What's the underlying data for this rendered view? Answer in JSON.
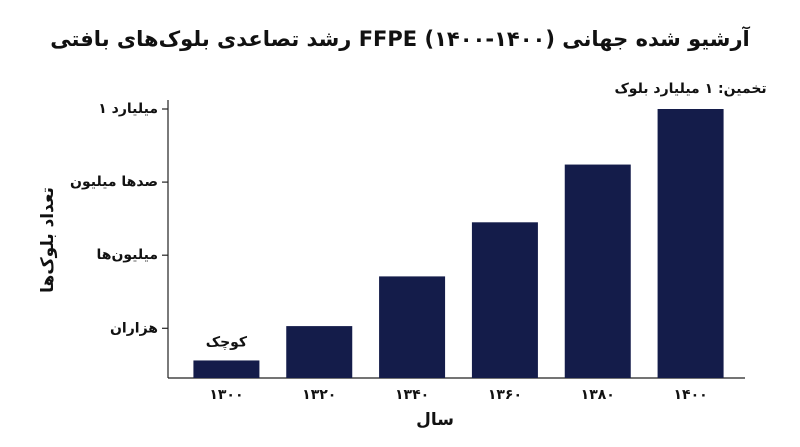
{
  "chart_data": {
    "type": "bar",
    "title": "رشد تصاعدی بلوک‌های بافتی FFPE آرشیو شده جهانی (۱۴۰۰-۱۴۰۰)",
    "x_label": "سال",
    "y_label": "تعداد بلوک‌ها",
    "categories": [
      "۱۳۰۰",
      "۱۳۲۰",
      "۱۳۴۰",
      "۱۳۶۰",
      "۱۳۸۰",
      "۱۴۰۰"
    ],
    "values": [
      0.56,
      1.03,
      1.71,
      2.45,
      3.24,
      4.0
    ],
    "color": "#141c4a",
    "ylim": [
      0.32,
      4
    ],
    "yticks": [
      {
        "value": 1,
        "label": "هزاران"
      },
      {
        "value": 2,
        "label": "میلیون‌ها"
      },
      {
        "value": 3,
        "label": "صدها میلیون"
      },
      {
        "value": 4,
        "label": "۱ میلیارد"
      }
    ],
    "annotations": [
      "کوچک",
      "تخمین: ۱ میلیارد بلوک"
    ]
  }
}
